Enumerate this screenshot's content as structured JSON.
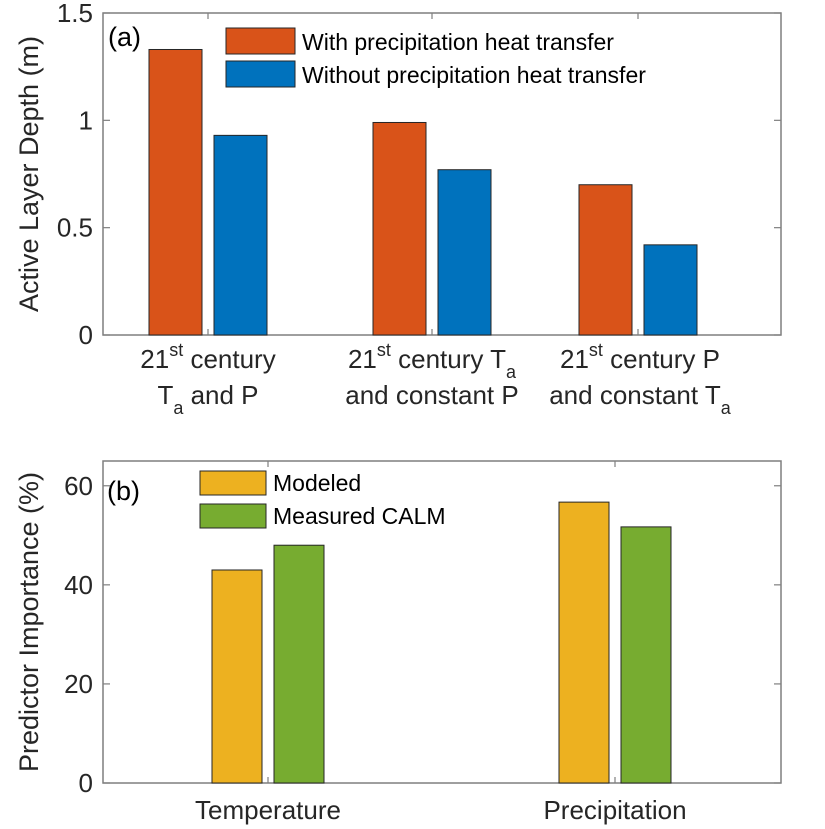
{
  "chart_data": [
    {
      "type": "bar",
      "panel_label": "(a)",
      "title": "",
      "xlabel": "",
      "ylabel": "Active Layer Depth (m)",
      "ylim": [
        0,
        1.5
      ],
      "yticks": [
        "0",
        "0.5",
        "1",
        "1.5"
      ],
      "ytick_values": [
        0,
        0.5,
        1,
        1.5
      ],
      "categories": [
        {
          "line1": "21",
          "line1_sup": "st",
          "line1_rest": " century",
          "line2": "T",
          "line2_sub": "a",
          "line2_rest": " and P"
        },
        {
          "line1": "21",
          "line1_sup": "st",
          "line1_rest": " century T",
          "line1_sub": "a",
          "line2": "and constant P"
        },
        {
          "line1": "21",
          "line1_sup": "st",
          "line1_rest": " century P",
          "line2": "and constant T",
          "line2_sub": "a"
        }
      ],
      "series": [
        {
          "name": "With precipitation heat transfer",
          "color": "#D95319",
          "values": [
            1.33,
            0.99,
            0.7
          ]
        },
        {
          "name": "Without precipitation heat transfer",
          "color": "#0072BD",
          "values": [
            0.93,
            0.77,
            0.42
          ]
        }
      ],
      "legend": "top-right",
      "grid": false
    },
    {
      "type": "bar",
      "panel_label": "(b)",
      "title": "",
      "xlabel": "",
      "ylabel": "Predictor Importance (%)",
      "ylim": [
        0,
        65
      ],
      "yticks": [
        "0",
        "20",
        "40",
        "60"
      ],
      "ytick_values": [
        0,
        20,
        40,
        60
      ],
      "categories": [
        "Temperature",
        "Precipitation"
      ],
      "series": [
        {
          "name": "Modeled",
          "color": "#EDB120",
          "values": [
            43,
            56.7
          ]
        },
        {
          "name": "Measured CALM",
          "color": "#77AC30",
          "values": [
            48,
            51.7
          ]
        }
      ],
      "legend": "top-left",
      "grid": false
    }
  ]
}
